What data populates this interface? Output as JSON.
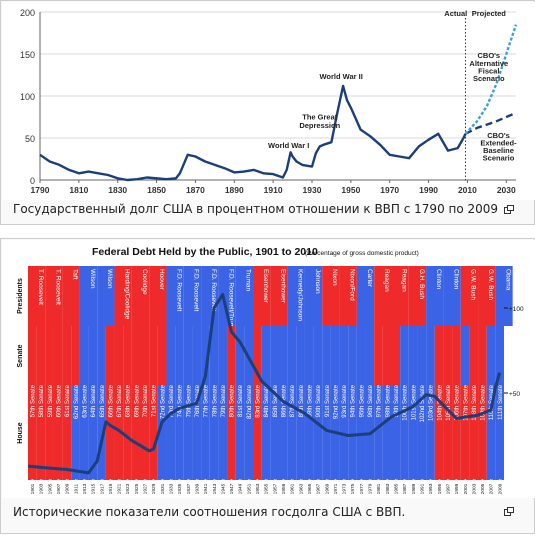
{
  "figures": [
    {
      "caption": "Государственный долг США в процентном отношении к ВВП с 1790 по 2009",
      "enlarge_icon": "magnify-icon"
    },
    {
      "caption": "Исторические показатели соотношения госдолга США с ВВП.",
      "enlarge_icon": "magnify-icon"
    }
  ],
  "chart_data": [
    {
      "type": "line",
      "x_ticks": [
        "1790",
        "1810",
        "1830",
        "1850",
        "1870",
        "1890",
        "1910",
        "1930",
        "1950",
        "1970",
        "1990",
        "2010",
        "2030"
      ],
      "y_ticks": [
        "0",
        "50",
        "100",
        "150",
        "200"
      ],
      "ylim": [
        0,
        200
      ],
      "xlim": [
        1790,
        2035
      ],
      "grid": "horizontal",
      "series": [
        {
          "name": "",
          "color": "#1c3f7a",
          "x": [
            1790,
            1795,
            1800,
            1805,
            1810,
            1815,
            1820,
            1825,
            1830,
            1835,
            1840,
            1845,
            1850,
            1855,
            1860,
            1862,
            1866,
            1870,
            1875,
            1880,
            1885,
            1890,
            1895,
            1900,
            1905,
            1910,
            1915,
            1917,
            1919,
            1920,
            1922,
            1925,
            1930,
            1932,
            1934,
            1936,
            1940,
            1943,
            1946,
            1948,
            1950,
            1955,
            1960,
            1965,
            1970,
            1975,
            1980,
            1985,
            1990,
            1995,
            2000,
            2005,
            2008,
            2009
          ],
          "y": [
            30,
            22,
            18,
            12,
            8,
            10,
            8,
            6,
            2,
            0,
            1,
            3,
            2,
            1,
            2,
            8,
            30,
            28,
            22,
            18,
            14,
            9,
            10,
            12,
            8,
            7,
            3,
            12,
            33,
            28,
            22,
            18,
            16,
            32,
            40,
            42,
            45,
            80,
            112,
            95,
            86,
            60,
            52,
            42,
            30,
            28,
            26,
            40,
            48,
            55,
            35,
            38,
            50,
            55
          ]
        },
        {
          "name": "",
          "color": "#1c3f7a",
          "dash": "long",
          "x": [
            2009,
            2015,
            2020,
            2025,
            2030,
            2035
          ],
          "y": [
            55,
            62,
            66,
            70,
            75,
            80
          ]
        },
        {
          "name": "",
          "color": "#3aa0dc",
          "dash": "short",
          "x": [
            2009,
            2015,
            2020,
            2025,
            2030,
            2035
          ],
          "y": [
            55,
            70,
            88,
            115,
            150,
            185
          ]
        }
      ],
      "annotations": [
        {
          "text": "World War I",
          "x": 1918,
          "y": 38
        },
        {
          "text": "The Great",
          "x": 1934,
          "y": 72
        },
        {
          "text": "Depression",
          "x": 1934,
          "y": 62
        },
        {
          "text": "World War II",
          "x": 1945,
          "y": 120
        },
        {
          "text": "Actual",
          "x": 2004,
          "y": 195
        },
        {
          "text": "Projected",
          "x": 2021,
          "y": 195
        },
        {
          "text": "CBO's",
          "x": 2021,
          "y": 145
        },
        {
          "text": "Alternative",
          "x": 2021,
          "y": 136
        },
        {
          "text": "Fiscal",
          "x": 2021,
          "y": 127
        },
        {
          "text": "Scenario",
          "x": 2021,
          "y": 118
        },
        {
          "text": "CBO's",
          "x": 2026,
          "y": 50
        },
        {
          "text": "Extended-",
          "x": 2026,
          "y": 41
        },
        {
          "text": "Baseline",
          "x": 2026,
          "y": 32
        },
        {
          "text": "Scenario",
          "x": 2026,
          "y": 23
        }
      ]
    },
    {
      "type": "line",
      "title": "Federal Debt Held by the Public, 1901 to 2010",
      "subtitle": "(Percentage of gross domestic product)",
      "row_labels": [
        "Presidents",
        "Senate",
        "House"
      ],
      "y_ticks": [
        "+100",
        "+50"
      ],
      "ylim": [
        0,
        120
      ],
      "presidents": [
        {
          "name": "T. Roosevelt",
          "party": "R"
        },
        {
          "name": "T. Roosevelt",
          "party": "R"
        },
        {
          "name": "Taft",
          "party": "R"
        },
        {
          "name": "Wilson",
          "party": "D"
        },
        {
          "name": "Wilson",
          "party": "D"
        },
        {
          "name": "Harding/Coolidge",
          "party": "R"
        },
        {
          "name": "Coolidge",
          "party": "R"
        },
        {
          "name": "Hoover",
          "party": "R"
        },
        {
          "name": "F.D. Roosevelt",
          "party": "D"
        },
        {
          "name": "F.D. Roosevelt",
          "party": "D"
        },
        {
          "name": "F.D. Roosevelt",
          "party": "D"
        },
        {
          "name": "F.D. Roosevelt/Truman",
          "party": "D"
        },
        {
          "name": "Truman",
          "party": "D"
        },
        {
          "name": "Eisenhower",
          "party": "R"
        },
        {
          "name": "Eisenhower",
          "party": "R"
        },
        {
          "name": "Kennedy/Johnson",
          "party": "D"
        },
        {
          "name": "Johnson",
          "party": "D"
        },
        {
          "name": "Nixon",
          "party": "R"
        },
        {
          "name": "Nixon/Ford",
          "party": "R"
        },
        {
          "name": "Carter",
          "party": "D"
        },
        {
          "name": "Reagan",
          "party": "R"
        },
        {
          "name": "Reagan",
          "party": "R"
        },
        {
          "name": "G.H. Bush",
          "party": "R"
        },
        {
          "name": "Clinton",
          "party": "D"
        },
        {
          "name": "Clinton",
          "party": "D"
        },
        {
          "name": "G.W. Bush",
          "party": "R"
        },
        {
          "name": "G.W. Bush",
          "party": "R"
        },
        {
          "name": "Obama",
          "party": "D"
        }
      ],
      "congresses": [
        {
          "senate": "57th Senate",
          "house": "57th House",
          "s": "R",
          "h": "R",
          "year": "1901"
        },
        {
          "senate": "58th Senate",
          "house": "58th House",
          "s": "R",
          "h": "R",
          "year": "1903"
        },
        {
          "senate": "59th Senate",
          "house": "59th House",
          "s": "R",
          "h": "R",
          "year": "1905"
        },
        {
          "senate": "60th Senate",
          "house": "60th House",
          "s": "R",
          "h": "R",
          "year": "1907"
        },
        {
          "senate": "61st Senate",
          "house": "61st House",
          "s": "R",
          "h": "R",
          "year": "1909"
        },
        {
          "senate": "62nd Senate",
          "house": "62nd House",
          "s": "R",
          "h": "D",
          "year": "1911"
        },
        {
          "senate": "63rd Senate",
          "house": "63rd House",
          "s": "D",
          "h": "D",
          "year": "1913"
        },
        {
          "senate": "64th Senate",
          "house": "64th House",
          "s": "D",
          "h": "D",
          "year": "1915"
        },
        {
          "senate": "65th Senate",
          "house": "65th House",
          "s": "D",
          "h": "D",
          "year": "1917"
        },
        {
          "senate": "66th Senate",
          "house": "66th House",
          "s": "R",
          "h": "R",
          "year": "1919"
        },
        {
          "senate": "67th Senate",
          "house": "67th House",
          "s": "R",
          "h": "R",
          "year": "1921"
        },
        {
          "senate": "68th Senate",
          "house": "68th House",
          "s": "R",
          "h": "R",
          "year": "1923"
        },
        {
          "senate": "69th Senate",
          "house": "69th House",
          "s": "R",
          "h": "R",
          "year": "1925"
        },
        {
          "senate": "70th Senate",
          "house": "70th House",
          "s": "R",
          "h": "R",
          "year": "1927"
        },
        {
          "senate": "71st Senate",
          "house": "71st House",
          "s": "R",
          "h": "R",
          "year": "1929"
        },
        {
          "senate": "72nd Senate",
          "house": "72nd House",
          "s": "R",
          "h": "D",
          "year": "1931"
        },
        {
          "senate": "73rd Senate",
          "house": "73rd House",
          "s": "D",
          "h": "D",
          "year": "1933"
        },
        {
          "senate": "74th Senate",
          "house": "74th House",
          "s": "D",
          "h": "D",
          "year": "1935"
        },
        {
          "senate": "75th Senate",
          "house": "75th House",
          "s": "D",
          "h": "D",
          "year": "1937"
        },
        {
          "senate": "76th Senate",
          "house": "76th House",
          "s": "D",
          "h": "D",
          "year": "1939"
        },
        {
          "senate": "77th Senate",
          "house": "77th House",
          "s": "D",
          "h": "D",
          "year": "1941"
        },
        {
          "senate": "78th Senate",
          "house": "78th House",
          "s": "D",
          "h": "D",
          "year": "1943"
        },
        {
          "senate": "79th Senate",
          "house": "79th House",
          "s": "D",
          "h": "D",
          "year": "1945"
        },
        {
          "senate": "80th Senate",
          "house": "80th House",
          "s": "R",
          "h": "R",
          "year": "1947"
        },
        {
          "senate": "81st Senate",
          "house": "81st House",
          "s": "D",
          "h": "D",
          "year": "1949"
        },
        {
          "senate": "82nd Senate",
          "house": "82nd House",
          "s": "D",
          "h": "D",
          "year": "1951"
        },
        {
          "senate": "83rd Senate",
          "house": "83rd House",
          "s": "R",
          "h": "R",
          "year": "1953"
        },
        {
          "senate": "84th Senate",
          "house": "84th House",
          "s": "D",
          "h": "D",
          "year": "1955"
        },
        {
          "senate": "85th Senate",
          "house": "85th House",
          "s": "D",
          "h": "D",
          "year": "1957"
        },
        {
          "senate": "86th Senate",
          "house": "86th House",
          "s": "D",
          "h": "D",
          "year": "1959"
        },
        {
          "senate": "87th Senate",
          "house": "87th House",
          "s": "D",
          "h": "D",
          "year": "1961"
        },
        {
          "senate": "88th Senate",
          "house": "88th House",
          "s": "D",
          "h": "D",
          "year": "1963"
        },
        {
          "senate": "89th Senate",
          "house": "89th House",
          "s": "D",
          "h": "D",
          "year": "1965"
        },
        {
          "senate": "90th Senate",
          "house": "90th House",
          "s": "D",
          "h": "D",
          "year": "1967"
        },
        {
          "senate": "91st Senate",
          "house": "91st House",
          "s": "D",
          "h": "D",
          "year": "1969"
        },
        {
          "senate": "92nd Senate",
          "house": "92nd House",
          "s": "D",
          "h": "D",
          "year": "1971"
        },
        {
          "senate": "93rd Senate",
          "house": "93rd House",
          "s": "D",
          "h": "D",
          "year": "1973"
        },
        {
          "senate": "94th Senate",
          "house": "94th House",
          "s": "D",
          "h": "D",
          "year": "1975"
        },
        {
          "senate": "95th Senate",
          "house": "95th House",
          "s": "D",
          "h": "D",
          "year": "1977"
        },
        {
          "senate": "96th Senate",
          "house": "96th House",
          "s": "D",
          "h": "D",
          "year": "1979"
        },
        {
          "senate": "97th Senate",
          "house": "97th House",
          "s": "R",
          "h": "D",
          "year": "1981"
        },
        {
          "senate": "98th Senate",
          "house": "98th House",
          "s": "R",
          "h": "D",
          "year": "1983"
        },
        {
          "senate": "99th Senate",
          "house": "99th House",
          "s": "R",
          "h": "D",
          "year": "1985"
        },
        {
          "senate": "100th Senate",
          "house": "100th House",
          "s": "D",
          "h": "D",
          "year": "1987"
        },
        {
          "senate": "101st Senate",
          "house": "101st House",
          "s": "D",
          "h": "D",
          "year": "1989"
        },
        {
          "senate": "102nd Senate",
          "house": "102nd House",
          "s": "D",
          "h": "D",
          "year": "1991"
        },
        {
          "senate": "103rd Senate",
          "house": "103rd House",
          "s": "D",
          "h": "D",
          "year": "1993"
        },
        {
          "senate": "104th Senate",
          "house": "104th House",
          "s": "R",
          "h": "R",
          "year": "1995"
        },
        {
          "senate": "105th Senate",
          "house": "105th House",
          "s": "R",
          "h": "R",
          "year": "1997"
        },
        {
          "senate": "106th Senate",
          "house": "106th House",
          "s": "R",
          "h": "R",
          "year": "1999"
        },
        {
          "senate": "107th Senate",
          "house": "107th House",
          "s": "D",
          "h": "R",
          "year": "2001"
        },
        {
          "senate": "108th Senate",
          "house": "108th House",
          "s": "R",
          "h": "R",
          "year": "2003"
        },
        {
          "senate": "109th Senate",
          "house": "109th House",
          "s": "R",
          "h": "R",
          "year": "2005"
        },
        {
          "senate": "110th Senate",
          "house": "110th House",
          "s": "D",
          "h": "D",
          "year": "2007"
        },
        {
          "senate": "111th Senate",
          "house": "111th House",
          "s": "D",
          "h": "D",
          "year": "2009"
        }
      ],
      "series": [
        {
          "name": "",
          "color": "#1c3f7a",
          "x": [
            1901,
            1905,
            1910,
            1915,
            1917,
            1919,
            1920,
            1922,
            1925,
            1929,
            1930,
            1932,
            1934,
            1936,
            1940,
            1942,
            1944,
            1946,
            1948,
            1950,
            1955,
            1960,
            1965,
            1970,
            1975,
            1980,
            1985,
            1990,
            1993,
            1995,
            2000,
            2005,
            2008,
            2009,
            2010
          ],
          "y": [
            7,
            6,
            5,
            3,
            10,
            33,
            31,
            28,
            22,
            16,
            17,
            33,
            38,
            41,
            44,
            60,
            100,
            108,
            86,
            80,
            57,
            45,
            38,
            28,
            25,
            26,
            36,
            42,
            49,
            48,
            35,
            37,
            40,
            53,
            62
          ]
        }
      ],
      "colors": {
        "republican": "#ee2a2a",
        "democrat": "#3b63e6",
        "line": "#1c3f7a"
      }
    }
  ]
}
